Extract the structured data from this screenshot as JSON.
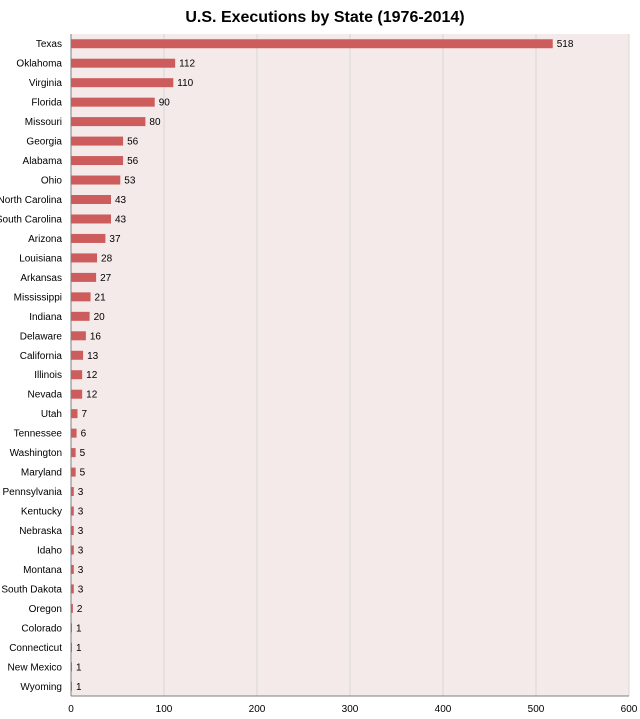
{
  "chart_data": {
    "type": "bar",
    "orientation": "horizontal",
    "title": "U.S. Executions by State (1976-2014)",
    "xlabel": "",
    "ylabel": "",
    "xlim": [
      0,
      600
    ],
    "xticks": [
      0,
      100,
      200,
      300,
      400,
      500,
      600
    ],
    "grid": true,
    "legend": "none",
    "colors": {
      "bar": "#cd5c5c",
      "plot_bg": "#f5eaea",
      "grid": "#d8d8d8"
    },
    "categories": [
      "Texas",
      "Oklahoma",
      "Virginia",
      "Florida",
      "Missouri",
      "Georgia",
      "Alabama",
      "Ohio",
      "North Carolina",
      "South Carolina",
      "Arizona",
      "Louisiana",
      "Arkansas",
      "Mississippi",
      "Indiana",
      "Delaware",
      "California",
      "Illinois",
      "Nevada",
      "Utah",
      "Tennessee",
      "Washington",
      "Maryland",
      "Pennsylvania",
      "Kentucky",
      "Nebraska",
      "Idaho",
      "Montana",
      "South Dakota",
      "Oregon",
      "Colorado",
      "Connecticut",
      "New Mexico",
      "Wyoming"
    ],
    "values": [
      518,
      112,
      110,
      90,
      80,
      56,
      56,
      53,
      43,
      43,
      37,
      28,
      27,
      21,
      20,
      16,
      13,
      12,
      12,
      7,
      6,
      5,
      5,
      3,
      3,
      3,
      3,
      3,
      3,
      2,
      1,
      1,
      1,
      1
    ]
  }
}
